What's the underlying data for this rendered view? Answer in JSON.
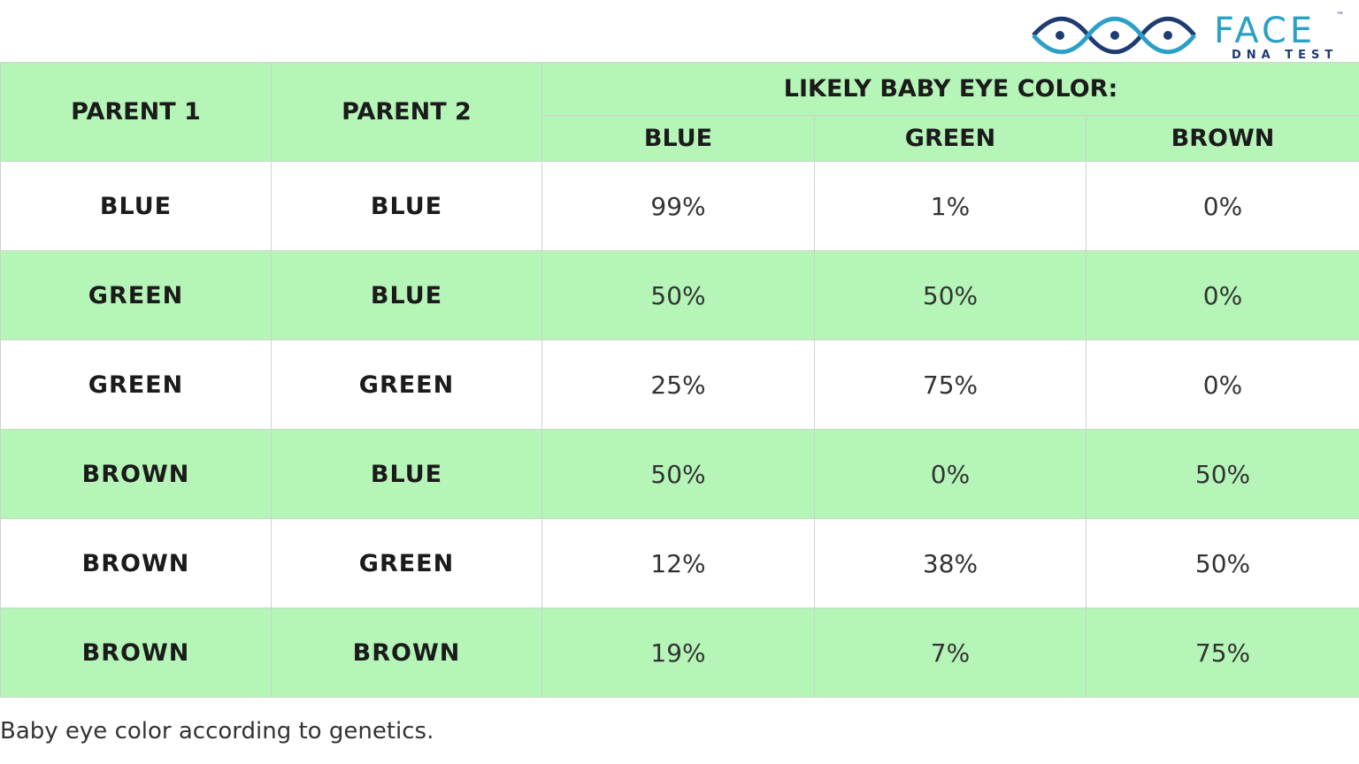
{
  "logo": {
    "name": "FACE",
    "trademark": "™",
    "tagline": "DNA TEST"
  },
  "table": {
    "header": {
      "parent1": "PARENT 1",
      "parent2": "PARENT 2",
      "group": "LIKELY BABY EYE COLOR:",
      "columns": [
        "BLUE",
        "GREEN",
        "BROWN"
      ]
    },
    "rows": [
      [
        "BLUE",
        "BLUE",
        "99%",
        "1%",
        "0%"
      ],
      [
        "GREEN",
        "BLUE",
        "50%",
        "50%",
        "0%"
      ],
      [
        "GREEN",
        "GREEN",
        "25%",
        "75%",
        "0%"
      ],
      [
        "BROWN",
        "BLUE",
        "50%",
        "0%",
        "50%"
      ],
      [
        "BROWN",
        "GREEN",
        "12%",
        "38%",
        "50%"
      ],
      [
        "BROWN",
        "BROWN",
        "19%",
        "7%",
        "75%"
      ]
    ]
  },
  "caption": "Baby eye color according to genetics."
}
